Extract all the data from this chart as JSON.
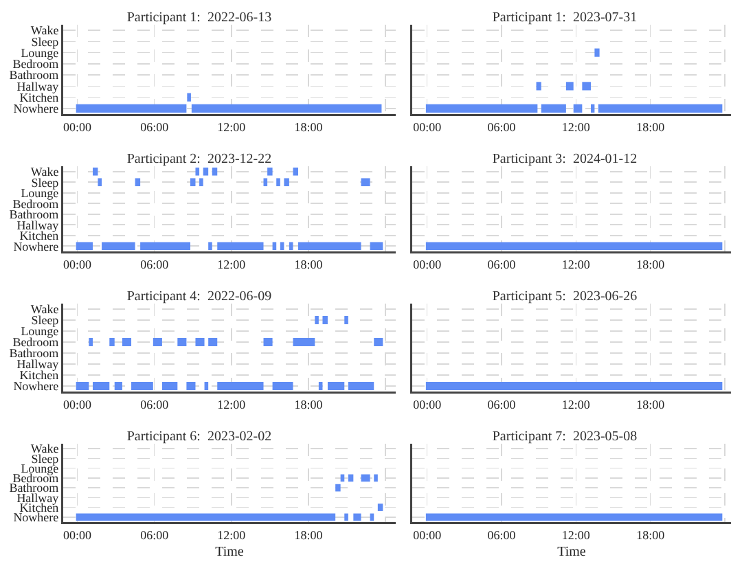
{
  "chart_data": [
    {
      "type": "bar",
      "orientation": "horizontal",
      "title": "Participant 1:  2022-06-13",
      "categories": [
        "Wake",
        "Sleep",
        "Lounge",
        "Bedroom",
        "Bathroom",
        "Hallway",
        "Kitchen",
        "Nowhere"
      ],
      "series": [
        {
          "color": "#5f8cf5",
          "base": [
            null,
            null,
            null,
            null,
            null,
            null,
            8.55,
            -0.1
          ],
          "values": [
            null,
            null,
            null,
            null,
            null,
            null,
            0.3,
            8.6
          ]
        },
        {
          "color": "#5f8cf5",
          "base": [
            null,
            null,
            null,
            null,
            null,
            null,
            null,
            8.9
          ],
          "values": [
            null,
            null,
            null,
            null,
            null,
            null,
            null,
            14.8
          ]
        }
      ],
      "xlim": [
        -1.1,
        24.8
      ],
      "xticks": [
        {
          "value": 0,
          "label": "00:00"
        },
        {
          "value": 6,
          "label": "06:00"
        },
        {
          "value": 12,
          "label": "12:00"
        },
        {
          "value": 18,
          "label": "18:00"
        },
        {
          "value": 24,
          "label": null
        }
      ],
      "grid": true
    },
    {
      "type": "bar",
      "orientation": "horizontal",
      "title": "Participant 1:  2023-07-31",
      "categories": [
        null,
        null,
        null,
        null,
        null,
        null,
        null,
        null
      ],
      "series": [
        {
          "color": "#5f8cf5",
          "base": [
            null,
            null,
            13.5,
            null,
            null,
            8.8,
            null,
            -0.1
          ],
          "values": [
            null,
            null,
            0.4,
            null,
            null,
            0.4,
            null,
            9.0
          ]
        },
        {
          "color": "#5f8cf5",
          "base": [
            null,
            null,
            null,
            null,
            null,
            11.2,
            null,
            9.2
          ],
          "values": [
            null,
            null,
            null,
            null,
            null,
            0.6,
            null,
            2.0
          ]
        },
        {
          "color": "#5f8cf5",
          "base": [
            null,
            null,
            null,
            null,
            null,
            12.5,
            null,
            11.8
          ],
          "values": [
            null,
            null,
            null,
            null,
            null,
            0.7,
            null,
            0.7
          ]
        },
        {
          "color": "#5f8cf5",
          "base": [
            null,
            null,
            null,
            null,
            null,
            null,
            null,
            13.2
          ],
          "values": [
            null,
            null,
            null,
            null,
            null,
            null,
            null,
            0.3
          ]
        },
        {
          "color": "#5f8cf5",
          "base": [
            null,
            null,
            null,
            null,
            null,
            null,
            null,
            13.8
          ],
          "values": [
            null,
            null,
            null,
            null,
            null,
            null,
            null,
            10.0
          ]
        }
      ],
      "xlim": [
        -1.2,
        24.5
      ],
      "xticks": [
        {
          "value": 0,
          "label": "00:00"
        },
        {
          "value": 6,
          "label": "06:00"
        },
        {
          "value": 12,
          "label": "12:00"
        },
        {
          "value": 18,
          "label": "18:00"
        },
        {
          "value": 24,
          "label": null
        }
      ],
      "grid": true,
      "tick_labels": "x"
    },
    {
      "type": "bar",
      "orientation": "horizontal",
      "title": "Participant 2:  2023-12-22",
      "categories": [
        "Wake",
        "Sleep",
        "Lounge",
        "Bedroom",
        "Bathroom",
        "Hallway",
        "Kitchen",
        "Nowhere"
      ],
      "series": [
        {
          "color": "#5f8cf5",
          "base": [
            1.2,
            1.6,
            null,
            null,
            null,
            null,
            null,
            -0.1
          ],
          "values": [
            0.4,
            0.3,
            null,
            null,
            null,
            null,
            null,
            1.3
          ]
        },
        {
          "color": "#5f8cf5",
          "base": [
            9.2,
            4.5,
            null,
            null,
            null,
            null,
            null,
            1.9
          ],
          "values": [
            0.3,
            0.4,
            null,
            null,
            null,
            null,
            null,
            2.6
          ]
        },
        {
          "color": "#5f8cf5",
          "base": [
            9.8,
            8.8,
            null,
            null,
            null,
            null,
            null,
            4.9
          ],
          "values": [
            0.4,
            0.4,
            null,
            null,
            null,
            null,
            null,
            3.9
          ]
        },
        {
          "color": "#5f8cf5",
          "base": [
            10.5,
            9.5,
            null,
            null,
            null,
            null,
            null,
            10.2
          ],
          "values": [
            0.4,
            0.3,
            null,
            null,
            null,
            null,
            null,
            0.3
          ]
        },
        {
          "color": "#5f8cf5",
          "base": [
            14.8,
            14.5,
            null,
            null,
            null,
            null,
            null,
            10.9
          ],
          "values": [
            0.4,
            0.3,
            null,
            null,
            null,
            null,
            null,
            3.6
          ]
        },
        {
          "color": "#5f8cf5",
          "base": [
            16.8,
            15.5,
            null,
            null,
            null,
            null,
            null,
            15.2
          ],
          "values": [
            0.4,
            0.3,
            null,
            null,
            null,
            null,
            null,
            0.3
          ]
        },
        {
          "color": "#5f8cf5",
          "base": [
            null,
            16.1,
            null,
            null,
            null,
            null,
            null,
            15.8
          ],
          "values": [
            null,
            0.4,
            null,
            null,
            null,
            null,
            null,
            0.3
          ]
        },
        {
          "color": "#5f8cf5",
          "base": [
            null,
            22.1,
            null,
            null,
            null,
            null,
            null,
            16.5
          ],
          "values": [
            null,
            0.7,
            null,
            null,
            null,
            null,
            null,
            0.3
          ]
        },
        {
          "color": "#5f8cf5",
          "base": [
            null,
            null,
            null,
            null,
            null,
            null,
            null,
            17.2
          ],
          "values": [
            null,
            null,
            null,
            null,
            null,
            null,
            null,
            4.9
          ]
        },
        {
          "color": "#5f8cf5",
          "base": [
            null,
            null,
            null,
            null,
            null,
            null,
            null,
            22.8
          ],
          "values": [
            null,
            null,
            null,
            null,
            null,
            null,
            null,
            1.0
          ]
        }
      ],
      "xlim": [
        -1.1,
        24.8
      ],
      "xticks": [
        {
          "value": 0,
          "label": "00:00"
        },
        {
          "value": 6,
          "label": "06:00"
        },
        {
          "value": 12,
          "label": "12:00"
        },
        {
          "value": 18,
          "label": "18:00"
        },
        {
          "value": 24,
          "label": null
        }
      ],
      "grid": true
    },
    {
      "type": "bar",
      "orientation": "horizontal",
      "title": "Participant 3:  2024-01-12",
      "categories": [
        null,
        null,
        null,
        null,
        null,
        null,
        null,
        null
      ],
      "series": [
        {
          "color": "#5f8cf5",
          "base": [
            null,
            null,
            null,
            null,
            null,
            null,
            null,
            -0.1
          ],
          "values": [
            null,
            null,
            null,
            null,
            null,
            null,
            null,
            23.9
          ]
        }
      ],
      "xlim": [
        -1.2,
        24.5
      ],
      "xticks": [
        {
          "value": 0,
          "label": "00:00"
        },
        {
          "value": 6,
          "label": "06:00"
        },
        {
          "value": 12,
          "label": "12:00"
        },
        {
          "value": 18,
          "label": "18:00"
        },
        {
          "value": 24,
          "label": null
        }
      ],
      "grid": true,
      "tick_labels": "x"
    },
    {
      "type": "bar",
      "orientation": "horizontal",
      "title": "Participant 4:  2022-06-09",
      "categories": [
        "Wake",
        "Sleep",
        "Lounge",
        "Bedroom",
        "Bathroom",
        "Hallway",
        "Kitchen",
        "Nowhere"
      ],
      "series": [
        {
          "color": "#5f8cf5",
          "base": [
            null,
            18.5,
            null,
            0.9,
            null,
            null,
            null,
            -0.1
          ],
          "values": [
            null,
            0.3,
            null,
            0.3,
            null,
            null,
            null,
            1.0
          ]
        },
        {
          "color": "#5f8cf5",
          "base": [
            null,
            19.1,
            null,
            2.5,
            null,
            null,
            null,
            1.2
          ],
          "values": [
            null,
            0.4,
            null,
            0.4,
            null,
            null,
            null,
            1.3
          ]
        },
        {
          "color": "#5f8cf5",
          "base": [
            null,
            20.8,
            null,
            3.5,
            null,
            null,
            null,
            2.9
          ],
          "values": [
            null,
            0.3,
            null,
            0.7,
            null,
            null,
            null,
            0.6
          ]
        },
        {
          "color": "#5f8cf5",
          "base": [
            null,
            null,
            null,
            5.9,
            null,
            null,
            null,
            4.2
          ],
          "values": [
            null,
            null,
            null,
            0.7,
            null,
            null,
            null,
            1.7
          ]
        },
        {
          "color": "#5f8cf5",
          "base": [
            null,
            null,
            null,
            7.8,
            null,
            null,
            null,
            6.6
          ],
          "values": [
            null,
            null,
            null,
            0.7,
            null,
            null,
            null,
            1.2
          ]
        },
        {
          "color": "#5f8cf5",
          "base": [
            null,
            null,
            null,
            9.2,
            null,
            null,
            null,
            8.5
          ],
          "values": [
            null,
            null,
            null,
            0.7,
            null,
            null,
            null,
            0.7
          ]
        },
        {
          "color": "#5f8cf5",
          "base": [
            null,
            null,
            null,
            10.2,
            null,
            null,
            null,
            9.9
          ],
          "values": [
            null,
            null,
            null,
            0.7,
            null,
            null,
            null,
            0.3
          ]
        },
        {
          "color": "#5f8cf5",
          "base": [
            null,
            null,
            null,
            14.5,
            null,
            null,
            null,
            10.9
          ],
          "values": [
            null,
            null,
            null,
            0.7,
            null,
            null,
            null,
            3.6
          ]
        },
        {
          "color": "#5f8cf5",
          "base": [
            null,
            null,
            null,
            16.8,
            null,
            null,
            null,
            15.2
          ],
          "values": [
            null,
            null,
            null,
            1.7,
            null,
            null,
            null,
            1.6
          ]
        },
        {
          "color": "#5f8cf5",
          "base": [
            null,
            null,
            null,
            23.1,
            null,
            null,
            null,
            18.8
          ],
          "values": [
            null,
            null,
            null,
            0.7,
            null,
            null,
            null,
            0.3
          ]
        },
        {
          "color": "#5f8cf5",
          "base": [
            null,
            null,
            null,
            null,
            null,
            null,
            null,
            19.5
          ],
          "values": [
            null,
            null,
            null,
            null,
            null,
            null,
            null,
            1.3
          ]
        },
        {
          "color": "#5f8cf5",
          "base": [
            null,
            null,
            null,
            null,
            null,
            null,
            null,
            21.1
          ],
          "values": [
            null,
            null,
            null,
            null,
            null,
            null,
            null,
            2.0
          ]
        }
      ],
      "xlim": [
        -1.1,
        24.8
      ],
      "xticks": [
        {
          "value": 0,
          "label": "00:00"
        },
        {
          "value": 6,
          "label": "06:00"
        },
        {
          "value": 12,
          "label": "12:00"
        },
        {
          "value": 18,
          "label": "18:00"
        },
        {
          "value": 24,
          "label": null
        }
      ],
      "grid": true
    },
    {
      "type": "bar",
      "orientation": "horizontal",
      "title": "Participant 5:  2023-06-26",
      "categories": [
        null,
        null,
        null,
        null,
        null,
        null,
        null,
        null
      ],
      "series": [
        {
          "color": "#5f8cf5",
          "base": [
            null,
            null,
            null,
            null,
            null,
            null,
            null,
            -0.1
          ],
          "values": [
            null,
            null,
            null,
            null,
            null,
            null,
            null,
            23.9
          ]
        }
      ],
      "xlim": [
        -1.2,
        24.5
      ],
      "xticks": [
        {
          "value": 0,
          "label": "00:00"
        },
        {
          "value": 6,
          "label": "06:00"
        },
        {
          "value": 12,
          "label": "12:00"
        },
        {
          "value": 18,
          "label": "18:00"
        },
        {
          "value": 24,
          "label": null
        }
      ],
      "grid": true,
      "tick_labels": "x"
    },
    {
      "type": "bar",
      "orientation": "horizontal",
      "title": "Participant 6:  2023-02-02",
      "xlabel": "Time",
      "categories": [
        "Wake",
        "Sleep",
        "Lounge",
        "Bedroom",
        "Bathroom",
        "Hallway",
        "Kitchen",
        "Nowhere"
      ],
      "series": [
        {
          "color": "#5f8cf5",
          "base": [
            null,
            null,
            null,
            20.5,
            20.1,
            null,
            23.4,
            -0.1
          ],
          "values": [
            null,
            null,
            null,
            0.3,
            0.4,
            null,
            0.4,
            20.2
          ]
        },
        {
          "color": "#5f8cf5",
          "base": [
            null,
            null,
            null,
            21.1,
            null,
            null,
            null,
            20.8
          ],
          "values": [
            null,
            null,
            null,
            0.4,
            null,
            null,
            null,
            0.3
          ]
        },
        {
          "color": "#5f8cf5",
          "base": [
            null,
            null,
            null,
            22.1,
            null,
            null,
            null,
            21.5
          ],
          "values": [
            null,
            null,
            null,
            0.7,
            null,
            null,
            null,
            0.6
          ]
        },
        {
          "color": "#5f8cf5",
          "base": [
            null,
            null,
            null,
            23.1,
            null,
            null,
            null,
            22.8
          ],
          "values": [
            null,
            null,
            null,
            0.3,
            null,
            null,
            null,
            0.3
          ]
        }
      ],
      "xlim": [
        -1.1,
        24.8
      ],
      "xticks": [
        {
          "value": 0,
          "label": "00:00"
        },
        {
          "value": 6,
          "label": "06:00"
        },
        {
          "value": 12,
          "label": "12:00"
        },
        {
          "value": 18,
          "label": "18:00"
        },
        {
          "value": 24,
          "label": null
        }
      ],
      "grid": true
    },
    {
      "type": "bar",
      "orientation": "horizontal",
      "title": "Participant 7:  2023-05-08",
      "xlabel": "Time",
      "categories": [
        null,
        null,
        null,
        null,
        null,
        null,
        null,
        null
      ],
      "series": [
        {
          "color": "#5f8cf5",
          "base": [
            null,
            null,
            null,
            null,
            null,
            null,
            null,
            -0.1
          ],
          "values": [
            null,
            null,
            null,
            null,
            null,
            null,
            null,
            23.9
          ]
        }
      ],
      "xlim": [
        -1.2,
        24.5
      ],
      "xticks": [
        {
          "value": 0,
          "label": "00:00"
        },
        {
          "value": 6,
          "label": "06:00"
        },
        {
          "value": 12,
          "label": "12:00"
        },
        {
          "value": 18,
          "label": "18:00"
        },
        {
          "value": 24,
          "label": null
        }
      ],
      "grid": true,
      "tick_labels": "x"
    }
  ]
}
